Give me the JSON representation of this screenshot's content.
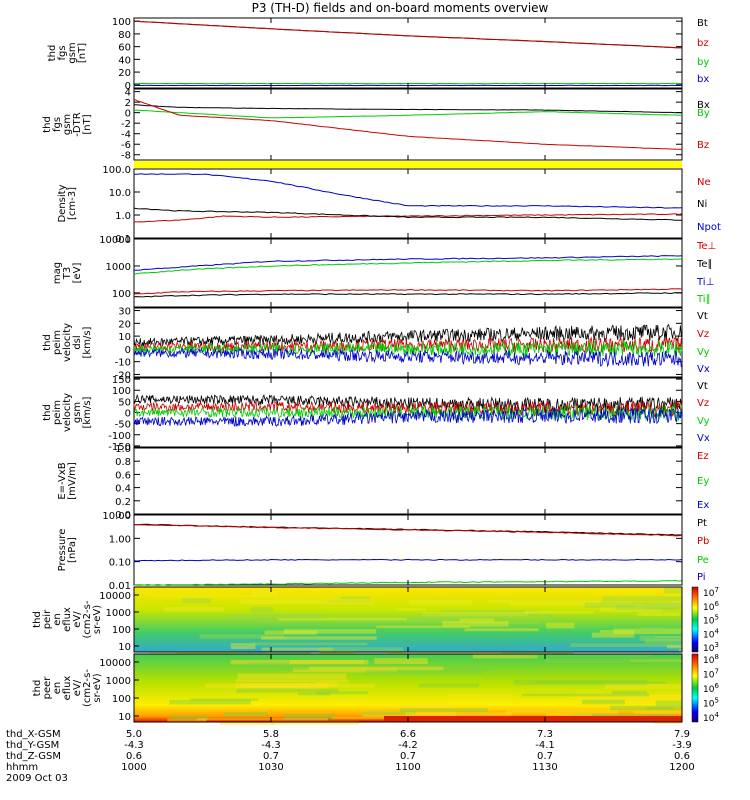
{
  "title": "P3 (TH-D) fields and on-board moments overview",
  "chart_data": [
    {
      "id": "fgs",
      "type": "line",
      "ylabel": [
        "thd",
        "fgs",
        "gsm",
        "[nT]"
      ],
      "ylim": [
        -5,
        105
      ],
      "ytick_labels": [
        "100",
        "80",
        "60",
        "40",
        "20",
        "0"
      ],
      "series": [
        {
          "name": "Bt",
          "color": "#000000",
          "x": [
            1000,
            1030,
            1100,
            1130,
            1200
          ],
          "y": [
            100,
            88,
            77,
            68,
            58
          ]
        },
        {
          "name": "bz",
          "color": "#cc0000",
          "x": [
            1000,
            1030,
            1100,
            1130,
            1200
          ],
          "y": [
            100,
            88,
            77,
            68,
            58
          ]
        },
        {
          "name": "by",
          "color": "#00cc00",
          "x": [
            1000,
            1030,
            1100,
            1130,
            1200
          ],
          "y": [
            2,
            2,
            2,
            2,
            2
          ]
        },
        {
          "name": "bx",
          "color": "#0000cc",
          "x": [
            1000,
            1030,
            1100,
            1130,
            1200
          ],
          "y": [
            -1,
            -1,
            -1,
            -1,
            -1
          ]
        }
      ]
    },
    {
      "id": "fgs_dtr",
      "type": "line",
      "ylabel": [
        "thd",
        "fgs",
        "gsm",
        "-DTR",
        "[nT]"
      ],
      "ylim": [
        -9,
        4.5
      ],
      "ytick_labels": [
        "4",
        "2",
        "0",
        "-2",
        "-4",
        "-6",
        "-8"
      ],
      "series": [
        {
          "name": "Bx",
          "color": "#000000",
          "x": [
            1000,
            1010,
            1030,
            1100,
            1130,
            1200
          ],
          "y": [
            1.5,
            1.0,
            0.8,
            0.6,
            0.5,
            0.0
          ]
        },
        {
          "name": "By",
          "color": "#00cc00",
          "x": [
            1000,
            1010,
            1030,
            1100,
            1130,
            1200
          ],
          "y": [
            0.5,
            0.0,
            -1.0,
            -0.5,
            0.2,
            -0.5
          ]
        },
        {
          "name": "Bz",
          "color": "#cc0000",
          "x": [
            1000,
            1010,
            1030,
            1100,
            1130,
            1200
          ],
          "y": [
            2.5,
            -0.5,
            -1.5,
            -4.5,
            -6.0,
            -7.0
          ]
        }
      ]
    },
    {
      "id": "density",
      "type": "line",
      "ylog": true,
      "ylabel": [
        "Density",
        "[cm-3]"
      ],
      "ylim": [
        0.1,
        100
      ],
      "ytick_labels": [
        "100.0",
        "10.0",
        "1.0",
        "0.1"
      ],
      "series": [
        {
          "name": "Ne",
          "color": "#cc0000",
          "x": [
            1000,
            1010,
            1020,
            1030,
            1100,
            1130,
            1200
          ],
          "y": [
            0.5,
            0.6,
            0.9,
            0.8,
            0.9,
            1.0,
            1.1
          ]
        },
        {
          "name": "Ni",
          "color": "#000000",
          "x": [
            1000,
            1010,
            1030,
            1100,
            1130,
            1200
          ],
          "y": [
            2.0,
            1.5,
            1.3,
            0.8,
            0.8,
            0.6
          ]
        },
        {
          "name": "Npot",
          "color": "#0000cc",
          "x": [
            1000,
            1015,
            1030,
            1045,
            1100,
            1130,
            1200
          ],
          "y": [
            60,
            60,
            30,
            8,
            2.5,
            2.5,
            2.0
          ]
        }
      ]
    },
    {
      "id": "temperature",
      "type": "line",
      "ylog": true,
      "ylabel": [
        "mag",
        "T3",
        "[eV]"
      ],
      "ylim": [
        30,
        10000
      ],
      "ytick_labels": [
        "10000",
        "1000",
        "100"
      ],
      "series": [
        {
          "name": "Te⊥",
          "color": "#cc0000",
          "x": [
            1000,
            1010,
            1030,
            1100,
            1130,
            1200
          ],
          "y": [
            90,
            110,
            120,
            130,
            120,
            140
          ]
        },
        {
          "name": "Te∥",
          "color": "#000000",
          "x": [
            1000,
            1010,
            1030,
            1100,
            1130,
            1200
          ],
          "y": [
            70,
            80,
            90,
            90,
            90,
            100
          ]
        },
        {
          "name": "Ti⊥",
          "color": "#0000cc",
          "x": [
            1000,
            1010,
            1030,
            1100,
            1130,
            1200
          ],
          "y": [
            700,
            900,
            1500,
            1800,
            2000,
            2400
          ]
        },
        {
          "name": "Ti∥",
          "color": "#00cc00",
          "x": [
            1000,
            1010,
            1030,
            1100,
            1130,
            1200
          ],
          "y": [
            500,
            700,
            1000,
            1300,
            1600,
            1800
          ]
        }
      ]
    },
    {
      "id": "peim_velocity",
      "type": "line",
      "ylabel": [
        "thd",
        "peim",
        "velocity",
        "dsl",
        "[km/s]"
      ],
      "ylim": [
        -22,
        32
      ],
      "ytick_labels": [
        "30",
        "20",
        "10",
        "0",
        "-10",
        "-20"
      ],
      "series": [
        {
          "name": "Vt",
          "color": "#000000",
          "x": [
            1000,
            1030,
            1100,
            1130,
            1200
          ],
          "y": [
            5,
            7,
            10,
            12,
            13
          ]
        },
        {
          "name": "Vz",
          "color": "#cc0000",
          "x": [
            1000,
            1030,
            1100,
            1130,
            1200
          ],
          "y": [
            2,
            2,
            3,
            3,
            3
          ]
        },
        {
          "name": "Vy",
          "color": "#00cc00",
          "x": [
            1000,
            1030,
            1100,
            1130,
            1200
          ],
          "y": [
            0,
            0,
            0,
            0,
            0
          ]
        },
        {
          "name": "Vx",
          "color": "#0000cc",
          "x": [
            1000,
            1030,
            1100,
            1130,
            1200
          ],
          "y": [
            -3,
            -4,
            -6,
            -7,
            -8
          ]
        }
      ]
    },
    {
      "id": "peir_velocity",
      "type": "line",
      "ylabel": [
        "thd",
        "peim",
        "velocity",
        "gsm",
        "[km/s]"
      ],
      "ylim": [
        -155,
        155
      ],
      "ytick_labels": [
        "150",
        "100",
        "50",
        "0",
        "-50",
        "-100",
        "-150"
      ],
      "series": [
        {
          "name": "Vt",
          "color": "#000000",
          "x": [
            1000,
            1030,
            1100,
            1130,
            1200
          ],
          "y": [
            60,
            55,
            40,
            35,
            35
          ]
        },
        {
          "name": "Vz",
          "color": "#cc0000",
          "x": [
            1000,
            1030,
            1100,
            1130,
            1200
          ],
          "y": [
            25,
            25,
            20,
            18,
            18
          ]
        },
        {
          "name": "Vy",
          "color": "#00cc00",
          "x": [
            1000,
            1030,
            1100,
            1130,
            1200
          ],
          "y": [
            0,
            0,
            0,
            0,
            0
          ]
        },
        {
          "name": "Vx",
          "color": "#0000cc",
          "x": [
            1000,
            1030,
            1100,
            1130,
            1200
          ],
          "y": [
            -40,
            -40,
            -20,
            -15,
            -15
          ]
        }
      ]
    },
    {
      "id": "efield",
      "type": "line",
      "ylabel": [
        "E=-VxB",
        "[mV/m]"
      ],
      "ylim": [
        0,
        1
      ],
      "ytick_labels": [
        "1.0",
        "0.8",
        "0.6",
        "0.4",
        "0.2",
        "0.0"
      ],
      "series": [
        {
          "name": "Ez",
          "color": "#cc0000",
          "x": [],
          "y": []
        },
        {
          "name": "Ey",
          "color": "#00cc00",
          "x": [],
          "y": []
        },
        {
          "name": "Ex",
          "color": "#0000cc",
          "x": [],
          "y": []
        }
      ]
    },
    {
      "id": "pressure",
      "type": "line",
      "ylog": true,
      "ylabel": [
        "Pressure",
        "[nPa]"
      ],
      "ylim": [
        0.01,
        10
      ],
      "ytick_labels": [
        "10.00",
        "1.00",
        "0.10",
        "0.01"
      ],
      "series": [
        {
          "name": "Pt",
          "color": "#000000",
          "x": [
            1000,
            1030,
            1100,
            1130,
            1200
          ],
          "y": [
            4.0,
            3.0,
            2.4,
            1.9,
            1.4
          ]
        },
        {
          "name": "Pb",
          "color": "#cc0000",
          "x": [
            1000,
            1030,
            1100,
            1130,
            1200
          ],
          "y": [
            3.9,
            2.9,
            2.3,
            1.8,
            1.3
          ]
        },
        {
          "name": "Pe",
          "color": "#00cc00",
          "x": [
            1000,
            1030,
            1100,
            1130,
            1200
          ],
          "y": [
            0.01,
            0.011,
            0.013,
            0.014,
            0.015
          ]
        },
        {
          "name": "Pi",
          "color": "#0000cc",
          "x": [
            1000,
            1030,
            1100,
            1130,
            1200
          ],
          "y": [
            0.11,
            0.12,
            0.12,
            0.12,
            0.12
          ]
        }
      ]
    },
    {
      "id": "peir_eflux",
      "type": "heatmap",
      "ylabel": [
        "thd",
        "peir",
        "en",
        "eflux",
        "eV/",
        "(cm2-s-",
        "sr-eV)"
      ],
      "ytick_labels": [
        "10000",
        "1000",
        "100",
        "10"
      ],
      "colorbar_labels": [
        "10^7",
        "10^6",
        "10^5",
        "10^4",
        "10^3"
      ]
    },
    {
      "id": "peer_eflux",
      "type": "heatmap",
      "ylabel": [
        "thd",
        "peer",
        "en",
        "eflux",
        "eV/",
        "(cm2-s-",
        "sr-eV)"
      ],
      "ytick_labels": [
        "10000",
        "1000",
        "100",
        "10"
      ],
      "colorbar_labels": [
        "10^8",
        "10^7",
        "10^6",
        "10^5",
        "10^4"
      ]
    }
  ],
  "x_axis": {
    "rows": [
      {
        "label": "thd_X-GSM",
        "values": [
          "5.0",
          "5.8",
          "6.6",
          "7.3",
          "7.9"
        ]
      },
      {
        "label": "thd_Y-GSM",
        "values": [
          "-4.3",
          "-4.3",
          "-4.2",
          "-4.1",
          "-3.9"
        ]
      },
      {
        "label": "thd_Z-GSM",
        "values": [
          "0.6",
          "0.7",
          "0.7",
          "0.7",
          "0.6"
        ]
      },
      {
        "label": "hhmm",
        "values": [
          "1000",
          "1030",
          "1100",
          "1130",
          "1200"
        ]
      }
    ],
    "date": "2009 Oct 03"
  }
}
